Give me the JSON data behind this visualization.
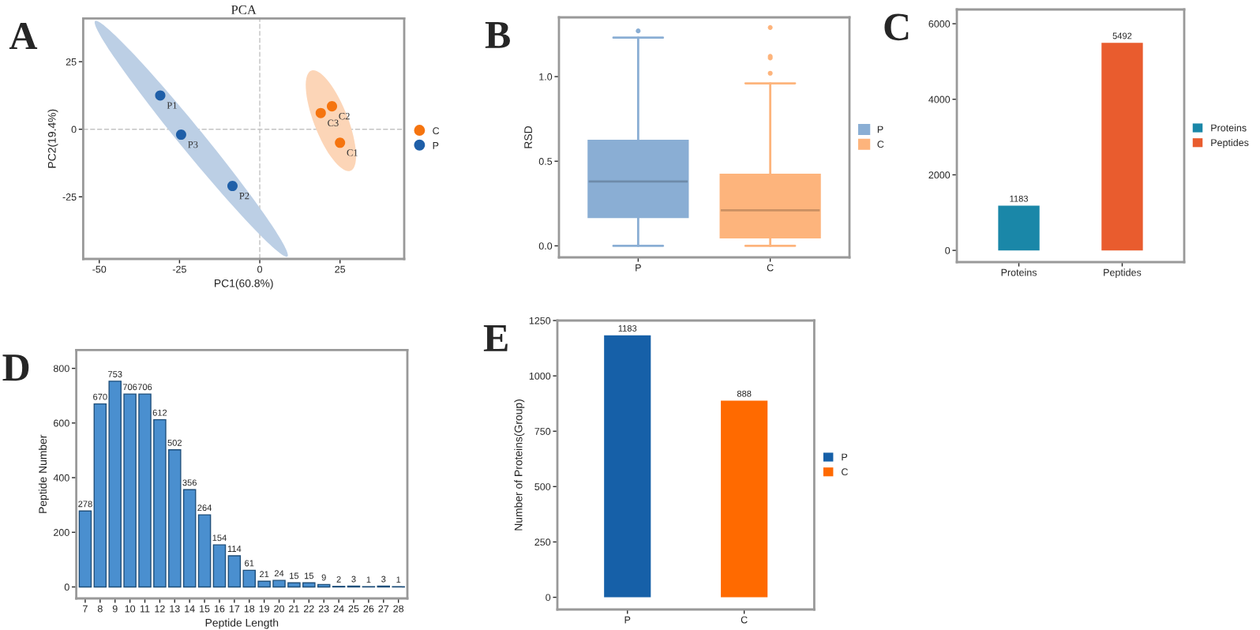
{
  "chart_data": [
    {
      "type": "scatter",
      "title": "PCA",
      "xlabel": "PC1(60.8%)",
      "ylabel": "PC2(19.4%)",
      "annotations": [
        "A"
      ],
      "xlim": [
        -55,
        45
      ],
      "ylim": [
        -48,
        41
      ],
      "xticks": [
        -50,
        -25,
        0,
        25
      ],
      "yticks": [
        -25,
        0,
        25
      ],
      "grid": false,
      "legend": "right",
      "marker": "circle",
      "ref_lines": [
        {
          "axis": "x",
          "value": 0,
          "line_style": "dashed",
          "color": "#cccccc"
        },
        {
          "axis": "y",
          "value": 0,
          "line_style": "dashed",
          "color": "#c4c4c4"
        }
      ],
      "series": [
        {
          "name": "C",
          "color": "#f5740f",
          "x": [
            25,
            22.5,
            19
          ],
          "values": [
            -5,
            8.5,
            6
          ],
          "value_labels": [
            "C1",
            "C2",
            "C3"
          ]
        },
        {
          "name": "P",
          "color": "#1f5fa8",
          "x": [
            -31,
            -8.5,
            -24.5
          ],
          "values": [
            12.5,
            -21,
            -2
          ],
          "value_labels": [
            "P1",
            "P2",
            "P3"
          ]
        }
      ]
    },
    {
      "type": "box",
      "ylabel": "RSD",
      "annotations": [
        "B"
      ],
      "categories": [
        "P",
        "C"
      ],
      "ylim": [
        -0.068,
        1.35
      ],
      "yticks": [
        {
          "value": 0,
          "label": "0.0"
        },
        0.5,
        {
          "value": 1,
          "label": "1.0"
        }
      ],
      "grid": false,
      "legend": "right",
      "series": [
        {
          "name": "P",
          "color": "#8aaed4",
          "boxes": [
            {
              "low": 0.0,
              "q1": 0.17,
              "median": 0.38,
              "q3": 0.62,
              "high": 1.23,
              "outliers": [
                1.27
              ]
            },
            null
          ]
        },
        {
          "name": "C",
          "color": "#fdb47c",
          "boxes": [
            null,
            {
              "low": 0.0,
              "q1": 0.05,
              "median": 0.21,
              "q3": 0.42,
              "high": 0.96,
              "outliers": [
                1.02,
                1.11,
                1.12,
                1.29
              ]
            }
          ]
        }
      ]
    },
    {
      "type": "bar",
      "annotations": [
        "C"
      ],
      "categories": [
        "Proteins",
        "Peptides"
      ],
      "ylim": [
        -310,
        6377
      ],
      "yticks": [
        0,
        2000,
        4000,
        6000
      ],
      "data_labels": true,
      "grid": false,
      "legend": "right",
      "series": [
        {
          "name": "Proteins",
          "color": "#1a87a8",
          "values": [
            1183,
            null
          ]
        },
        {
          "name": "Peptides",
          "color": "#e95c2e",
          "values": [
            null,
            5492
          ]
        }
      ]
    },
    {
      "type": "bar",
      "xlabel": "Peptide Length",
      "ylabel": "Peptide Number",
      "annotations": [
        "D"
      ],
      "categories": [
        "7",
        "8",
        "9",
        "10",
        "11",
        "12",
        "13",
        "14",
        "15",
        "16",
        "17",
        "18",
        "19",
        "20",
        "21",
        "22",
        "23",
        "24",
        "25",
        "26",
        "27",
        "28"
      ],
      "values": [
        278,
        670,
        753,
        706,
        706,
        612,
        502,
        356,
        264,
        154,
        114,
        61,
        21,
        24,
        15,
        15,
        9,
        2,
        3,
        1,
        3,
        1
      ],
      "color": "#4a8fcf",
      "ylim": [
        -42,
        867
      ],
      "yticks": [
        0,
        200,
        400,
        600,
        800
      ],
      "data_labels": true,
      "grid": false
    },
    {
      "type": "bar",
      "ylabel": "Number of Proteins(Group)",
      "annotations": [
        "E"
      ],
      "categories": [
        "P",
        "C"
      ],
      "series": [
        {
          "name": "P",
          "color": "#1660a8",
          "values": [
            1183,
            null
          ]
        },
        {
          "name": "C",
          "color": "#ff6a00",
          "values": [
            null,
            888
          ]
        }
      ],
      "ylim": [
        -55,
        1250
      ],
      "yticks": [
        0,
        250,
        500,
        750,
        1000,
        1250
      ],
      "data_labels": true,
      "grid": false,
      "legend": "right"
    }
  ]
}
